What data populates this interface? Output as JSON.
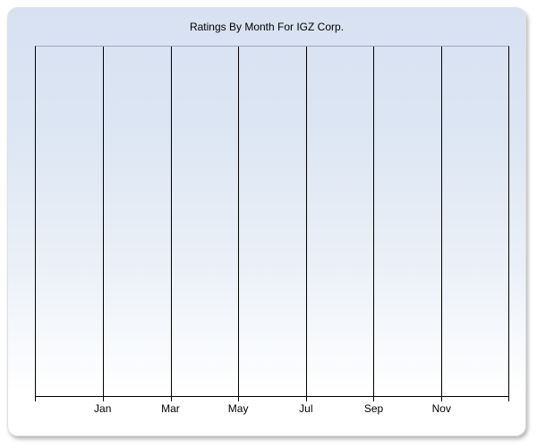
{
  "chart": {
    "title": "Ratings By Month For IGZ Corp.",
    "x_tick_labels": [
      "Jan",
      "Mar",
      "May",
      "Jul",
      "Sep",
      "Nov"
    ]
  },
  "chart_data": {
    "type": "line",
    "title": "Ratings By Month For IGZ Corp.",
    "x_axis": {
      "tick_labels": [
        "Jan",
        "Mar",
        "May",
        "Jul",
        "Sep",
        "Nov"
      ],
      "tick_positions_fraction_of_plot_width": [
        0.143,
        0.286,
        0.429,
        0.571,
        0.714,
        0.857
      ],
      "gridlines": "8 vertical lines (both edges plus 6 interior) dividing plot into 7 equal columns"
    },
    "y_axis": {
      "tick_labels": [],
      "label": ""
    },
    "series": [],
    "legend_position": "none",
    "layout": {
      "empty_plot": true,
      "grid": "vertical-only",
      "plot_background": "vertical gradient, light blue at top to white at bottom"
    }
  },
  "colors": {
    "page_background": "#ffffff",
    "panel_gradient_top": "#d7e1f1",
    "panel_gradient_bottom": "#ffffff",
    "panel_border": "#e0e0e0",
    "panel_shadow": "#8a8a8a",
    "plot_top_border": "#9fa9bd",
    "gridline_and_axis": "#000000",
    "text": "#000000"
  }
}
